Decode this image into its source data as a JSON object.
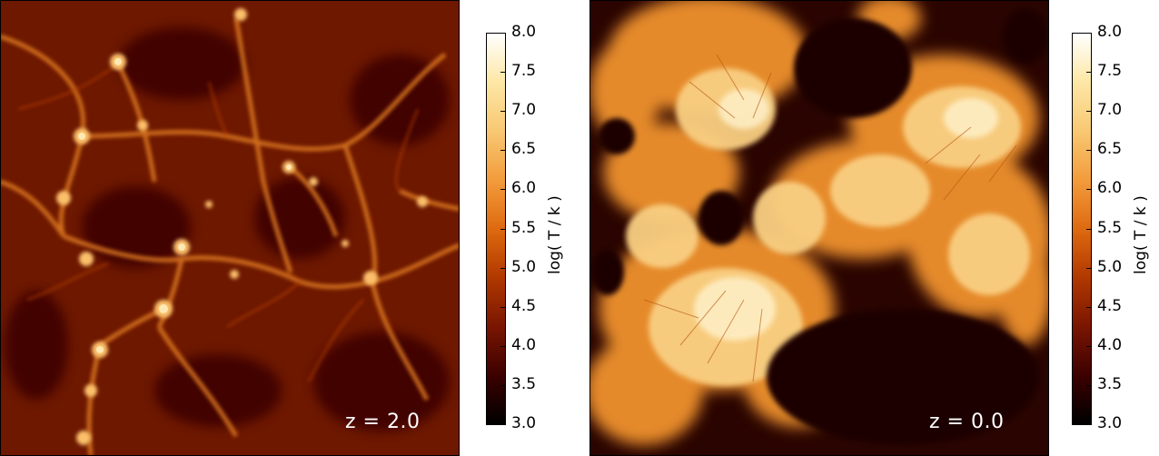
{
  "panels": [
    {
      "redshift_label": "z = 2.0"
    },
    {
      "redshift_label": "z = 0.0"
    }
  ],
  "colorbar": {
    "label": "log( T / k )",
    "ticks": [
      "8.0",
      "7.5",
      "7.0",
      "6.5",
      "6.0",
      "5.5",
      "5.0",
      "4.5",
      "4.0",
      "3.5",
      "3.0"
    ],
    "colormap": [
      "#000000",
      "#3a0000",
      "#7a1500",
      "#b33a00",
      "#de6a10",
      "#f29a3a",
      "#f8c872",
      "#fde8a8",
      "#ffffff"
    ]
  }
}
